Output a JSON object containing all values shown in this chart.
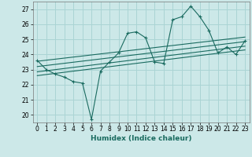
{
  "title": "",
  "xlabel": "Humidex (Indice chaleur)",
  "ylabel": "",
  "bg_color": "#cce8e8",
  "line_color": "#1a6b60",
  "grid_color": "#aad4d4",
  "x_ticks": [
    0,
    1,
    2,
    3,
    4,
    5,
    6,
    7,
    8,
    9,
    10,
    11,
    12,
    13,
    14,
    15,
    16,
    17,
    18,
    19,
    20,
    21,
    22,
    23
  ],
  "y_ticks": [
    20,
    21,
    22,
    23,
    24,
    25,
    26,
    27
  ],
  "xlim": [
    -0.5,
    23.5
  ],
  "ylim": [
    19.5,
    27.5
  ],
  "series": {
    "main": [
      [
        0,
        23.6
      ],
      [
        1,
        23.0
      ],
      [
        2,
        22.7
      ],
      [
        3,
        22.5
      ],
      [
        4,
        22.2
      ],
      [
        5,
        22.1
      ],
      [
        6,
        19.7
      ],
      [
        7,
        22.9
      ],
      [
        8,
        23.5
      ],
      [
        9,
        24.1
      ],
      [
        10,
        25.4
      ],
      [
        11,
        25.5
      ],
      [
        12,
        25.1
      ],
      [
        13,
        23.5
      ],
      [
        14,
        23.4
      ],
      [
        15,
        26.3
      ],
      [
        16,
        26.5
      ],
      [
        17,
        27.2
      ],
      [
        18,
        26.5
      ],
      [
        19,
        25.6
      ],
      [
        20,
        24.1
      ],
      [
        21,
        24.5
      ],
      [
        22,
        24.0
      ],
      [
        23,
        24.9
      ]
    ],
    "trend_lines": [
      [
        [
          0,
          23.55
        ],
        [
          23,
          25.15
        ]
      ],
      [
        [
          0,
          23.2
        ],
        [
          23,
          24.85
        ]
      ],
      [
        [
          0,
          22.85
        ],
        [
          23,
          24.55
        ]
      ],
      [
        [
          0,
          22.6
        ],
        [
          23,
          24.3
        ]
      ]
    ]
  }
}
